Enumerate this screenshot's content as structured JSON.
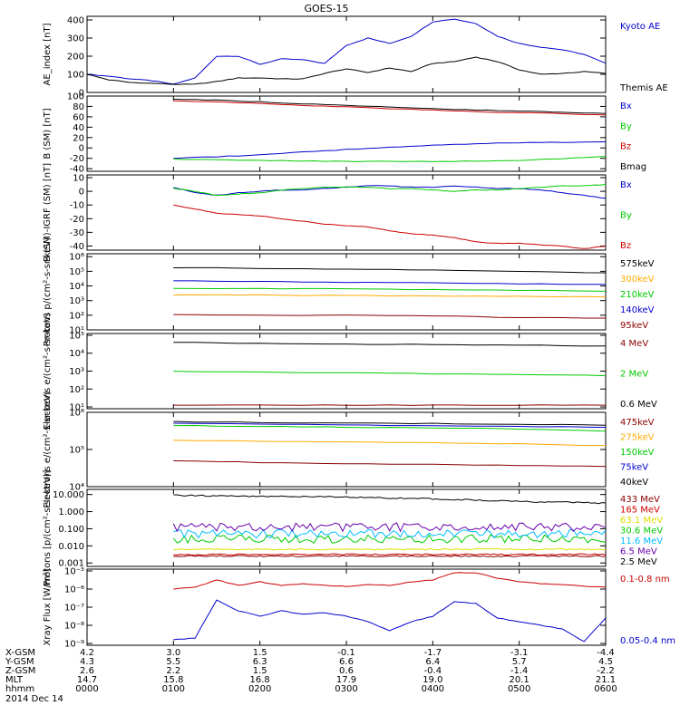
{
  "title": "GOES-15",
  "date_label": "2014 Dec 14",
  "colors": {
    "black": "#000000",
    "blue": "#0000cc",
    "green": "#00cc00",
    "red": "#cc0000",
    "orange": "#ffaa00",
    "darkred": "#880000",
    "cyan": "#00bbff",
    "purple": "#6600aa",
    "yellow": "#dddd00",
    "magenta": "#aa0066"
  },
  "footer": {
    "rows": [
      {
        "label": "X-GSM",
        "values": [
          "4.2",
          "3.0",
          "1.5",
          "-0.1",
          "-1.7",
          "-3.1",
          "-4.4"
        ]
      },
      {
        "label": "Y-GSM",
        "values": [
          "4.3",
          "5.5",
          "6.3",
          "6.6",
          "6.4",
          "5.7",
          "4.5"
        ]
      },
      {
        "label": "Z-GSM",
        "values": [
          "2.6",
          "2.2",
          "1.5",
          "0.6",
          "-0.4",
          "-1.4",
          "-2.2"
        ]
      },
      {
        "label": "MLT",
        "values": [
          "14.7",
          "15.8",
          "16.8",
          "17.9",
          "19.0",
          "20.1",
          "21.1"
        ]
      },
      {
        "label": "hhmm",
        "values": [
          "0000",
          "0100",
          "0200",
          "0300",
          "0400",
          "0500",
          "0600"
        ]
      }
    ]
  },
  "chart_data": [
    {
      "type": "line",
      "ylabel": "AE_index [nT]",
      "ylim": [
        0,
        420
      ],
      "yticks": [
        {
          "v": 0,
          "t": "0"
        },
        {
          "v": 100,
          "t": "100"
        },
        {
          "v": 200,
          "t": "200"
        },
        {
          "v": 300,
          "t": "300"
        },
        {
          "v": 400,
          "t": "400"
        }
      ],
      "log": false,
      "x": [
        0,
        0.25,
        0.5,
        0.75,
        1,
        1.25,
        1.5,
        1.75,
        2,
        2.25,
        2.5,
        2.75,
        3,
        3.25,
        3.5,
        3.75,
        4,
        4.25,
        4.5,
        4.75,
        5,
        5.25,
        5.5,
        5.75,
        6
      ],
      "series": [
        {
          "name": "Kyoto AE",
          "color": "blue",
          "values": [
            100,
            90,
            75,
            65,
            45,
            80,
            200,
            200,
            155,
            185,
            180,
            160,
            260,
            300,
            270,
            310,
            390,
            405,
            380,
            310,
            270,
            250,
            235,
            210,
            160
          ]
        },
        {
          "name": "Themis AE",
          "color": "black",
          "values": [
            100,
            70,
            55,
            50,
            45,
            45,
            60,
            80,
            80,
            75,
            75,
            105,
            130,
            110,
            135,
            115,
            160,
            170,
            195,
            170,
            125,
            100,
            105,
            115,
            105
          ]
        }
      ]
    },
    {
      "type": "line",
      "ylabel": "B (SM) [nT]",
      "ylim": [
        -45,
        100
      ],
      "yticks": [
        {
          "v": -40,
          "t": "-40"
        },
        {
          "v": -20,
          "t": "-20"
        },
        {
          "v": 0,
          "t": "0"
        },
        {
          "v": 20,
          "t": "20"
        },
        {
          "v": 40,
          "t": "40"
        },
        {
          "v": 60,
          "t": "60"
        },
        {
          "v": 80,
          "t": "80"
        },
        {
          "v": 100,
          "t": "100"
        }
      ],
      "log": false,
      "x": [
        1,
        1.5,
        2,
        2.5,
        3,
        3.5,
        4,
        4.5,
        5,
        5.5,
        6
      ],
      "series": [
        {
          "name": "Bx",
          "color": "blue",
          "values": [
            -20,
            -17,
            -13,
            -8,
            -3,
            1,
            5,
            8,
            10,
            11,
            12
          ]
        },
        {
          "name": "By",
          "color": "green",
          "values": [
            -22,
            -23,
            -24,
            -25,
            -26,
            -26,
            -26,
            -25,
            -24,
            -21,
            -16
          ]
        },
        {
          "name": "Bz",
          "color": "red",
          "values": [
            91,
            89,
            86,
            82,
            79,
            76,
            73,
            70,
            68,
            66,
            63
          ]
        },
        {
          "name": "Bmag",
          "color": "black",
          "values": [
            94,
            92,
            89,
            85,
            82,
            79,
            76,
            73,
            71,
            69,
            66
          ]
        }
      ]
    },
    {
      "type": "line",
      "ylabel": "B (SM)-IGRF (SM) [nT]",
      "ylim": [
        -43,
        12
      ],
      "yticks": [
        {
          "v": -40,
          "t": "-40"
        },
        {
          "v": -30,
          "t": "-30"
        },
        {
          "v": -20,
          "t": "-20"
        },
        {
          "v": -10,
          "t": "-10"
        },
        {
          "v": 0,
          "t": "0"
        },
        {
          "v": 10,
          "t": "10"
        }
      ],
      "log": false,
      "x": [
        1,
        1.25,
        1.5,
        1.75,
        2,
        2.25,
        2.5,
        2.75,
        3,
        3.25,
        3.5,
        3.75,
        4,
        4.25,
        4.5,
        4.75,
        5,
        5.25,
        5.5,
        5.75,
        6
      ],
      "series": [
        {
          "name": "Bx",
          "color": "blue",
          "values": [
            3,
            -1,
            -3,
            -1,
            0,
            1,
            1,
            2,
            3,
            4,
            4,
            3,
            3,
            4,
            3,
            2,
            2,
            1,
            -1,
            -3,
            -5
          ]
        },
        {
          "name": "By",
          "color": "green",
          "values": [
            2,
            0,
            -3,
            -2,
            -1,
            1,
            2,
            3,
            3,
            3,
            2,
            2,
            1,
            0,
            1,
            1,
            2,
            3,
            4,
            4,
            5
          ]
        },
        {
          "name": "Bz",
          "color": "red",
          "values": [
            -10,
            -13,
            -16,
            -17,
            -18,
            -20,
            -22,
            -24,
            -25,
            -26,
            -29,
            -31,
            -32,
            -34,
            -37,
            -38,
            -38,
            -39,
            -40,
            -42,
            -40
          ]
        }
      ]
    },
    {
      "type": "line",
      "ylabel": "Protons p/(cm²-s-sr-keV)",
      "ylim": [
        1,
        6.2
      ],
      "log": true,
      "yticks": [
        {
          "v": 1,
          "t": "10¹"
        },
        {
          "v": 2,
          "t": "10²"
        },
        {
          "v": 3,
          "t": "10³"
        },
        {
          "v": 4,
          "t": "10⁴"
        },
        {
          "v": 5,
          "t": "10⁵"
        },
        {
          "v": 6,
          "t": "10⁶"
        }
      ],
      "x": [
        1,
        2,
        3,
        4,
        5,
        6
      ],
      "series": [
        {
          "name": "575keV",
          "color": "black",
          "values": [
            5.25,
            5.2,
            5.15,
            5.1,
            5.0,
            4.9
          ]
        },
        {
          "name": "300keV",
          "color": "orange",
          "values": [
            3.4,
            3.38,
            3.35,
            3.32,
            3.28,
            3.25
          ]
        },
        {
          "name": "210keV",
          "color": "green",
          "values": [
            3.85,
            3.82,
            3.8,
            3.75,
            3.7,
            3.65
          ]
        },
        {
          "name": "140keV",
          "color": "blue",
          "values": [
            4.35,
            4.3,
            4.25,
            4.2,
            4.15,
            4.1
          ]
        },
        {
          "name": "95keV",
          "color": "darkred",
          "values": [
            2.05,
            2.0,
            2.0,
            1.95,
            1.85,
            1.8
          ]
        }
      ]
    },
    {
      "type": "line",
      "ylabel": "Electrons e/(cm²-s-sr-keV)",
      "ylim": [
        0.9,
        5.1
      ],
      "log": true,
      "yticks": [
        {
          "v": 1,
          "t": "10¹"
        },
        {
          "v": 2,
          "t": "10²"
        },
        {
          "v": 3,
          "t": "10³"
        },
        {
          "v": 4,
          "t": "10⁴"
        },
        {
          "v": 5,
          "t": "10⁵"
        }
      ],
      "x": [
        1,
        2,
        3,
        4,
        5,
        6
      ],
      "series": [
        {
          "name": "4 MeV",
          "color": "darkred",
          "values": [
            1.1,
            1.1,
            1.1,
            1.1,
            1.1,
            1.1
          ]
        },
        {
          "name": "2 MeV",
          "color": "green",
          "values": [
            3.0,
            2.95,
            2.9,
            2.85,
            2.8,
            2.75
          ]
        },
        {
          "name": "0.6 MeV",
          "color": "black",
          "values": [
            4.6,
            4.55,
            4.5,
            4.5,
            4.45,
            4.4
          ]
        }
      ]
    },
    {
      "type": "line",
      "ylabel": "Electrons e/(cm²-s-sr-keV)",
      "ylim": [
        4,
        6
      ],
      "log": true,
      "yticks": [
        {
          "v": 4,
          "t": "10⁴"
        },
        {
          "v": 5,
          "t": "10⁵"
        },
        {
          "v": 6,
          "t": "10⁶"
        }
      ],
      "x": [
        1,
        2,
        3,
        4,
        5,
        6
      ],
      "series": [
        {
          "name": "475keV",
          "color": "darkred",
          "values": [
            4.7,
            4.65,
            4.62,
            4.6,
            4.57,
            4.55
          ]
        },
        {
          "name": "275keV",
          "color": "orange",
          "values": [
            5.25,
            5.22,
            5.2,
            5.18,
            5.15,
            5.1
          ]
        },
        {
          "name": "150keV",
          "color": "green",
          "values": [
            5.65,
            5.62,
            5.6,
            5.58,
            5.55,
            5.5
          ]
        },
        {
          "name": "75keV",
          "color": "blue",
          "values": [
            5.7,
            5.68,
            5.66,
            5.64,
            5.62,
            5.6
          ]
        },
        {
          "name": "40keV",
          "color": "black",
          "values": [
            5.75,
            5.73,
            5.71,
            5.7,
            5.68,
            5.66
          ]
        }
      ]
    },
    {
      "type": "line",
      "ylabel": "Protons [p/(cm²-s-sr-keV)]",
      "ylim": [
        -3.2,
        1.3
      ],
      "log": true,
      "yticks": [
        {
          "v": -3,
          "t": "0.001"
        },
        {
          "v": -2,
          "t": "0.010"
        },
        {
          "v": -1,
          "t": "0.100"
        },
        {
          "v": 0,
          "t": "1.000"
        },
        {
          "v": 1,
          "t": "10.000"
        }
      ],
      "x": [
        1,
        2,
        3,
        4,
        5,
        6
      ],
      "series": [
        {
          "name": "433 MeV",
          "color": "darkred",
          "values": [
            -2.6,
            -2.6,
            -2.6,
            -2.6,
            -2.6,
            -2.6
          ]
        },
        {
          "name": "165 MeV",
          "color": "red",
          "values": [
            -2.5,
            -2.5,
            -2.5,
            -2.5,
            -2.5,
            -2.5
          ]
        },
        {
          "name": "63.1 MeV",
          "color": "yellow",
          "values": [
            -2.2,
            -2.2,
            -2.2,
            -2.2,
            -2.2,
            -2.2
          ]
        },
        {
          "name": "30.6 MeV",
          "color": "green",
          "values": [
            -1.6,
            -1.6,
            -1.6,
            -1.6,
            -1.6,
            -1.6
          ]
        },
        {
          "name": "11.6 MeV",
          "color": "cyan",
          "values": [
            -1.3,
            -1.3,
            -1.3,
            -1.3,
            -1.3,
            -1.3
          ]
        },
        {
          "name": "6.5 MeV",
          "color": "purple",
          "values": [
            -0.9,
            -0.9,
            -0.9,
            -0.9,
            -0.9,
            -0.9
          ]
        },
        {
          "name": "2.5 MeV",
          "color": "black",
          "values": [
            0.95,
            0.9,
            0.85,
            0.75,
            0.6,
            0.5
          ]
        }
      ]
    },
    {
      "type": "line",
      "ylabel": "Xray Flux [W/m²]",
      "ylim": [
        -9.1,
        -4.9
      ],
      "log": true,
      "yticks": [
        {
          "v": -9,
          "t": "10⁻⁹"
        },
        {
          "v": -8,
          "t": "10⁻⁸"
        },
        {
          "v": -7,
          "t": "10⁻⁷"
        },
        {
          "v": -6,
          "t": "10⁻⁶"
        },
        {
          "v": -5,
          "t": "10⁻⁵"
        }
      ],
      "x": [
        1,
        1.25,
        1.5,
        1.75,
        2,
        2.25,
        2.5,
        2.75,
        3,
        3.25,
        3.5,
        3.75,
        4,
        4.25,
        4.5,
        4.75,
        5,
        5.25,
        5.5,
        5.75,
        6
      ],
      "series": [
        {
          "name": "0.1-0.8 nm",
          "color": "red",
          "values": [
            -6.0,
            -5.9,
            -5.5,
            -5.8,
            -5.6,
            -5.8,
            -5.7,
            -5.8,
            -5.85,
            -5.75,
            -5.8,
            -5.6,
            -5.5,
            -5.1,
            -5.1,
            -5.4,
            -5.6,
            -5.7,
            -5.75,
            -5.85,
            -5.9
          ]
        },
        {
          "name": "0.05-0.4 nm",
          "color": "blue",
          "values": [
            -8.8,
            -8.7,
            -6.6,
            -7.2,
            -7.5,
            -7.2,
            -7.4,
            -7.3,
            -7.5,
            -7.8,
            -8.3,
            -7.8,
            -7.5,
            -6.7,
            -6.8,
            -7.6,
            -7.8,
            -8.0,
            -8.2,
            -8.9,
            -7.6
          ]
        }
      ]
    }
  ]
}
